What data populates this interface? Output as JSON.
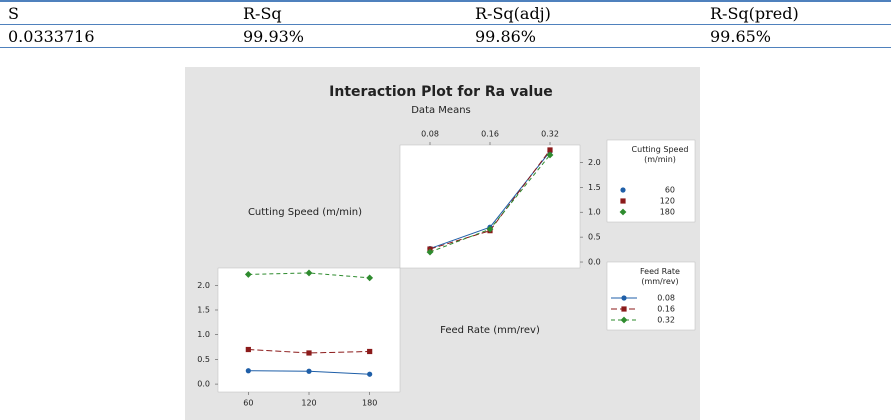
{
  "table": {
    "header": [
      "S",
      "R-Sq",
      "R-Sq(adj)",
      "R-Sq(pred)"
    ],
    "rows": [
      [
        "0.0333716",
        "99.93%",
        "99.86%",
        "99.65%"
      ]
    ]
  },
  "chart_data": {
    "type": "interaction",
    "title": "Interaction Plot for Ra value",
    "subtitle": "Data Means",
    "factors": [
      "Cutting Speed (m/min)",
      "Feed Rate (mm/rev)"
    ],
    "panels": [
      {
        "categories": [
          "0.08",
          "0.16",
          "0.32"
        ],
        "ylim": [
          -0.12,
          2.35
        ],
        "yticks": [
          {
            "value": 0,
            "label": "0.0"
          },
          0.5,
          {
            "value": 1,
            "label": "1.0"
          },
          1.5,
          {
            "value": 2,
            "label": "2.0"
          }
        ],
        "series": [
          {
            "name": "60",
            "color": "#1f5fa8",
            "values": [
              0.27,
              0.7,
              2.22
            ]
          },
          {
            "name": "120",
            "color": "#8b1a1a",
            "values": [
              0.26,
              0.63,
              2.25
            ]
          },
          {
            "name": "180",
            "color": "#2e8b2e",
            "values": [
              0.2,
              0.66,
              2.15
            ]
          }
        ]
      },
      {
        "categories": [
          "60",
          "120",
          "180"
        ],
        "ylim": [
          -0.16,
          2.35
        ],
        "yticks": [
          {
            "value": 0,
            "label": "0.0"
          },
          0.5,
          {
            "value": 1,
            "label": "1.0"
          },
          1.5,
          {
            "value": 2,
            "label": "2.0"
          }
        ],
        "series": [
          {
            "name": "0.08",
            "color": "#1f5fa8",
            "values": [
              0.27,
              0.26,
              0.2
            ]
          },
          {
            "name": "0.16",
            "color": "#8b1a1a",
            "values": [
              0.7,
              0.63,
              0.66
            ]
          },
          {
            "name": "0.32",
            "color": "#2e8b2e",
            "values": [
              2.22,
              2.25,
              2.15
            ]
          }
        ]
      }
    ]
  }
}
